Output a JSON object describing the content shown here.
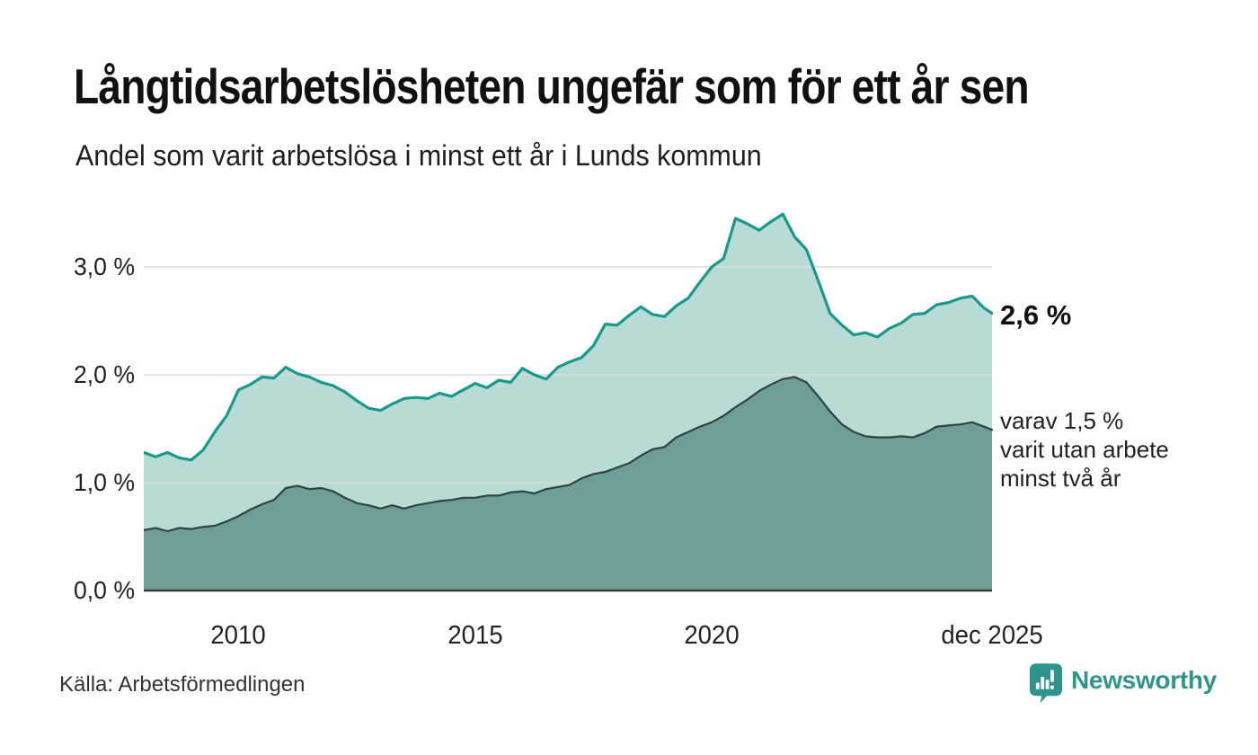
{
  "header": {
    "title": "Långtidsarbetslösheten ungefär som för ett år sen",
    "subtitle": "Andel som varit arbetslösa i minst ett år i Lunds kommun"
  },
  "chart_data": {
    "type": "area",
    "title": "Långtidsarbetslösheten ungefär som för ett år sen",
    "subtitle": "Andel som varit arbetslösa i minst ett år i Lunds kommun",
    "xlim": [
      2008.0,
      2025.92
    ],
    "ylim": [
      0,
      3.6
    ],
    "grid": "horizontal",
    "grid_color": "#d9d9d9",
    "axis_color": "#3a3a3a",
    "x": [
      2008.0,
      2008.25,
      2008.5,
      2008.75,
      2009.0,
      2009.25,
      2009.5,
      2009.75,
      2010.0,
      2010.25,
      2010.5,
      2010.75,
      2011.0,
      2011.25,
      2011.5,
      2011.75,
      2012.0,
      2012.25,
      2012.5,
      2012.75,
      2013.0,
      2013.25,
      2013.5,
      2013.75,
      2014.0,
      2014.25,
      2014.5,
      2014.75,
      2015.0,
      2015.25,
      2015.5,
      2015.75,
      2016.0,
      2016.25,
      2016.5,
      2016.75,
      2017.0,
      2017.25,
      2017.5,
      2017.75,
      2018.0,
      2018.25,
      2018.5,
      2018.75,
      2019.0,
      2019.25,
      2019.5,
      2019.75,
      2020.0,
      2020.25,
      2020.5,
      2020.75,
      2021.0,
      2021.25,
      2021.5,
      2021.75,
      2022.0,
      2022.25,
      2022.5,
      2022.75,
      2023.0,
      2023.25,
      2023.5,
      2023.75,
      2024.0,
      2024.25,
      2024.5,
      2024.75,
      2025.0,
      2025.25,
      2025.5,
      2025.75,
      2025.92
    ],
    "series": [
      {
        "label": "andel arbetslösa minst ett år",
        "line_color": "#18998b",
        "fill_color": "#b8dbd5",
        "end_label": "2,6 %",
        "values": [
          1.28,
          1.24,
          1.28,
          1.23,
          1.21,
          1.3,
          1.47,
          1.62,
          1.86,
          1.91,
          1.98,
          1.97,
          2.07,
          2.01,
          1.98,
          1.93,
          1.9,
          1.84,
          1.76,
          1.69,
          1.67,
          1.73,
          1.78,
          1.79,
          1.78,
          1.83,
          1.8,
          1.86,
          1.92,
          1.88,
          1.95,
          1.93,
          2.06,
          2.0,
          1.96,
          2.07,
          2.12,
          2.16,
          2.27,
          2.47,
          2.46,
          2.55,
          2.63,
          2.56,
          2.54,
          2.64,
          2.71,
          2.86,
          3.0,
          3.08,
          3.45,
          3.4,
          3.34,
          3.42,
          3.49,
          3.28,
          3.16,
          2.87,
          2.57,
          2.46,
          2.37,
          2.39,
          2.35,
          2.43,
          2.48,
          2.56,
          2.57,
          2.65,
          2.67,
          2.71,
          2.73,
          2.62,
          2.57
        ]
      },
      {
        "label": "varav utan arbete minst två år",
        "line_color": "#2e443f",
        "fill_color": "#6f9d97",
        "end_label": "varav 1,5 %\nvarit utan arbete\nminst två år",
        "values": [
          0.56,
          0.58,
          0.55,
          0.58,
          0.57,
          0.59,
          0.6,
          0.64,
          0.69,
          0.75,
          0.8,
          0.84,
          0.95,
          0.97,
          0.94,
          0.95,
          0.92,
          0.86,
          0.81,
          0.79,
          0.76,
          0.79,
          0.76,
          0.79,
          0.81,
          0.83,
          0.84,
          0.86,
          0.86,
          0.88,
          0.88,
          0.91,
          0.92,
          0.9,
          0.94,
          0.96,
          0.98,
          1.04,
          1.08,
          1.1,
          1.14,
          1.18,
          1.25,
          1.31,
          1.33,
          1.42,
          1.47,
          1.52,
          1.56,
          1.62,
          1.7,
          1.77,
          1.85,
          1.91,
          1.96,
          1.98,
          1.93,
          1.8,
          1.66,
          1.54,
          1.47,
          1.43,
          1.42,
          1.42,
          1.43,
          1.42,
          1.46,
          1.52,
          1.53,
          1.54,
          1.56,
          1.52,
          1.49
        ]
      }
    ],
    "y_ticks": [
      {
        "value": 0,
        "label": "0,0 %"
      },
      {
        "value": 1,
        "label": "1,0 %"
      },
      {
        "value": 2,
        "label": "2,0 %"
      },
      {
        "value": 3,
        "label": "3,0 %"
      }
    ],
    "x_ticks": [
      {
        "value": 2010,
        "label": "2010"
      },
      {
        "value": 2015,
        "label": "2015"
      },
      {
        "value": 2020,
        "label": "2020"
      },
      {
        "value": 2025.92,
        "label": "dec 2025"
      }
    ]
  },
  "footer": {
    "source": "Källa: Arbetsförmedlingen",
    "brand": "Newsworthy",
    "brand_color": "#2f948c"
  }
}
